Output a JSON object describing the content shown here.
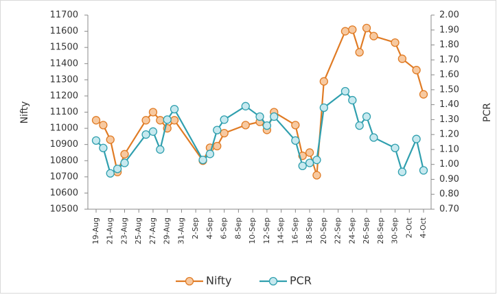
{
  "chart_data": {
    "type": "line",
    "x": [
      "19-Aug",
      "20-Aug",
      "21-Aug",
      "22-Aug",
      "23-Aug",
      "26-Aug",
      "27-Aug",
      "28-Aug",
      "29-Aug",
      "30-Aug",
      "3-Sep",
      "4-Sep",
      "5-Sep",
      "6-Sep",
      "9-Sep",
      "11-Sep",
      "12-Sep",
      "13-Sep",
      "16-Sep",
      "17-Sep",
      "18-Sep",
      "19-Sep",
      "20-Sep",
      "23-Sep",
      "24-Sep",
      "25-Sep",
      "26-Sep",
      "27-Sep",
      "30-Sep",
      "1-Oct",
      "3-Oct",
      "4-Oct"
    ],
    "xticks": [
      "19-Aug",
      "21-Aug",
      "23-Aug",
      "25-Aug",
      "27-Aug",
      "29-Aug",
      "31-Aug",
      "2-Sep",
      "4-Sep",
      "6-Sep",
      "8-Sep",
      "10-Sep",
      "12-Sep",
      "14-Sep",
      "16-Sep",
      "18-Sep",
      "20-Sep",
      "22-Sep",
      "24-Sep",
      "26-Sep",
      "28-Sep",
      "30-Sep",
      "2-Oct",
      "4-Oct"
    ],
    "y_label": "Nifty",
    "y2_label": "PCR",
    "ylim": [
      10500,
      11700
    ],
    "yticks": [
      10500,
      10600,
      10700,
      10800,
      10900,
      11000,
      11100,
      11200,
      11300,
      11400,
      11500,
      11600,
      11700
    ],
    "y2lim": [
      0.7,
      2.0
    ],
    "y2ticks": [
      {
        "value": 0.7,
        "label": "0.70"
      },
      {
        "value": 0.8,
        "label": "0.80"
      },
      {
        "value": 0.9,
        "label": "0.90"
      },
      {
        "value": 1.0,
        "label": "1.00"
      },
      {
        "value": 1.1,
        "label": "1.10"
      },
      {
        "value": 1.2,
        "label": "1.20"
      },
      {
        "value": 1.3,
        "label": "1.30"
      },
      {
        "value": 1.4,
        "label": "1.40"
      },
      {
        "value": 1.5,
        "label": "1.50"
      },
      {
        "value": 1.6,
        "label": "1.60"
      },
      {
        "value": 1.7,
        "label": "1.70"
      },
      {
        "value": 1.8,
        "label": "1.80"
      },
      {
        "value": 1.9,
        "label": "1.90"
      },
      {
        "value": 2.0,
        "label": "2.00"
      }
    ],
    "legend": "bottom",
    "series": [
      {
        "name": "Nifty",
        "color": "#e07b24",
        "marker_fill": "#f7c9a0",
        "values": [
          11050,
          11020,
          10930,
          10730,
          10840,
          11050,
          11100,
          11050,
          11000,
          11050,
          10800,
          10880,
          10890,
          10970,
          11020,
          11040,
          10990,
          11100,
          11020,
          10830,
          10850,
          10710,
          11290,
          11600,
          11610,
          11470,
          11620,
          11570,
          11530,
          11430,
          11360,
          11210
        ]
      },
      {
        "name": "PCR",
        "color": "#2f9fae",
        "marker_fill": "#c7e9ef",
        "axis": "y2",
        "values": [
          1.16,
          1.11,
          0.94,
          0.97,
          1.01,
          1.2,
          1.22,
          1.1,
          1.3,
          1.37,
          1.03,
          1.07,
          1.23,
          1.3,
          1.39,
          1.32,
          1.26,
          1.32,
          1.16,
          0.99,
          1.01,
          1.03,
          1.38,
          1.49,
          1.43,
          1.26,
          1.32,
          1.18,
          1.11,
          0.95,
          1.17,
          0.96
        ]
      }
    ]
  }
}
